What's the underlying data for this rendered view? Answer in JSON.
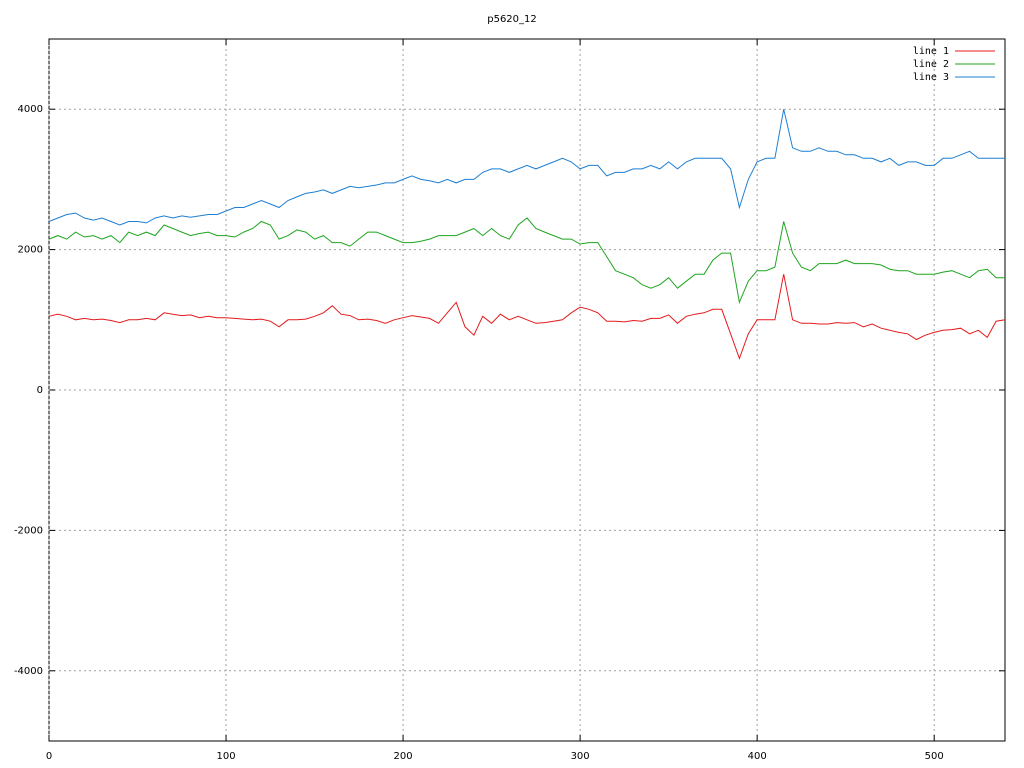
{
  "chart_data": {
    "type": "line",
    "title": "p5620_12",
    "x": [
      0,
      5,
      10,
      15,
      20,
      25,
      30,
      35,
      40,
      45,
      50,
      55,
      60,
      65,
      70,
      75,
      80,
      85,
      90,
      95,
      100,
      105,
      110,
      115,
      120,
      125,
      130,
      135,
      140,
      145,
      150,
      155,
      160,
      165,
      170,
      175,
      180,
      185,
      190,
      195,
      200,
      205,
      210,
      215,
      220,
      225,
      230,
      235,
      240,
      245,
      250,
      255,
      260,
      265,
      270,
      275,
      280,
      285,
      290,
      295,
      300,
      305,
      310,
      315,
      320,
      325,
      330,
      335,
      340,
      345,
      350,
      355,
      360,
      365,
      370,
      375,
      380,
      385,
      390,
      395,
      400,
      405,
      410,
      415,
      420,
      425,
      430,
      435,
      440,
      445,
      450,
      455,
      460,
      465,
      470,
      475,
      480,
      485,
      490,
      495,
      500,
      505,
      510,
      515,
      520,
      525,
      530,
      535,
      540
    ],
    "series": [
      {
        "name": "line 1",
        "color": "#e41a1c",
        "values": [
          1050,
          1080,
          1050,
          1000,
          1020,
          1000,
          1010,
          990,
          960,
          1000,
          1000,
          1020,
          1000,
          1100,
          1080,
          1060,
          1070,
          1030,
          1050,
          1030,
          1030,
          1020,
          1010,
          1000,
          1010,
          980,
          900,
          1000,
          1000,
          1010,
          1050,
          1100,
          1200,
          1080,
          1060,
          1000,
          1010,
          990,
          950,
          1000,
          1030,
          1060,
          1040,
          1020,
          950,
          1100,
          1250,
          900,
          780,
          1050,
          950,
          1080,
          1000,
          1050,
          1000,
          950,
          960,
          980,
          1000,
          1100,
          1180,
          1150,
          1100,
          980,
          980,
          970,
          990,
          980,
          1020,
          1020,
          1070,
          950,
          1050,
          1080,
          1100,
          1150,
          1150,
          800,
          450,
          800,
          1000,
          1000,
          1000,
          1650,
          1000,
          950,
          950,
          940,
          940,
          960,
          950,
          960,
          900,
          940,
          880,
          850,
          820,
          800,
          720,
          780,
          820,
          850,
          860,
          880,
          800,
          850,
          750,
          980,
          1000
        ]
      },
      {
        "name": "line 2",
        "color": "#1fa51f",
        "values": [
          2150,
          2200,
          2150,
          2250,
          2180,
          2200,
          2150,
          2200,
          2100,
          2250,
          2200,
          2250,
          2200,
          2350,
          2300,
          2250,
          2200,
          2230,
          2250,
          2200,
          2200,
          2180,
          2250,
          2300,
          2400,
          2350,
          2150,
          2200,
          2280,
          2250,
          2150,
          2200,
          2100,
          2100,
          2050,
          2150,
          2250,
          2250,
          2200,
          2150,
          2100,
          2100,
          2120,
          2150,
          2200,
          2200,
          2200,
          2250,
          2300,
          2200,
          2300,
          2200,
          2150,
          2350,
          2450,
          2300,
          2250,
          2200,
          2150,
          2150,
          2080,
          2100,
          2100,
          1900,
          1700,
          1650,
          1600,
          1500,
          1450,
          1500,
          1600,
          1450,
          1550,
          1650,
          1650,
          1850,
          1950,
          1950,
          1250,
          1550,
          1700,
          1700,
          1750,
          2400,
          1950,
          1750,
          1700,
          1800,
          1800,
          1800,
          1850,
          1800,
          1800,
          1800,
          1780,
          1720,
          1700,
          1700,
          1650,
          1650,
          1650,
          1680,
          1700,
          1650,
          1600,
          1700,
          1720,
          1600,
          1600
        ]
      },
      {
        "name": "line 3",
        "color": "#1e7fd2",
        "values": [
          2400,
          2450,
          2500,
          2520,
          2450,
          2420,
          2450,
          2400,
          2350,
          2400,
          2400,
          2380,
          2450,
          2480,
          2450,
          2480,
          2460,
          2480,
          2500,
          2500,
          2550,
          2600,
          2600,
          2650,
          2700,
          2650,
          2600,
          2700,
          2750,
          2800,
          2820,
          2850,
          2800,
          2850,
          2900,
          2880,
          2900,
          2920,
          2950,
          2950,
          3000,
          3050,
          3000,
          2980,
          2950,
          3000,
          2950,
          3000,
          3000,
          3100,
          3150,
          3150,
          3100,
          3150,
          3200,
          3150,
          3200,
          3250,
          3300,
          3250,
          3150,
          3200,
          3200,
          3050,
          3100,
          3100,
          3150,
          3150,
          3200,
          3150,
          3250,
          3150,
          3250,
          3300,
          3300,
          3300,
          3300,
          3150,
          2600,
          3000,
          3250,
          3300,
          3300,
          4000,
          3450,
          3400,
          3400,
          3450,
          3400,
          3400,
          3350,
          3350,
          3300,
          3300,
          3250,
          3300,
          3200,
          3250,
          3250,
          3200,
          3200,
          3300,
          3300,
          3350,
          3400,
          3300,
          3300,
          3300,
          3300
        ]
      }
    ],
    "xlim": [
      0,
      540
    ],
    "ylim": [
      -5000,
      5000
    ],
    "xticks": [
      0,
      100,
      200,
      300,
      400,
      500
    ],
    "yticks": [
      -4000,
      -2000,
      0,
      2000,
      4000
    ],
    "grid": true,
    "legend": "top-right"
  }
}
